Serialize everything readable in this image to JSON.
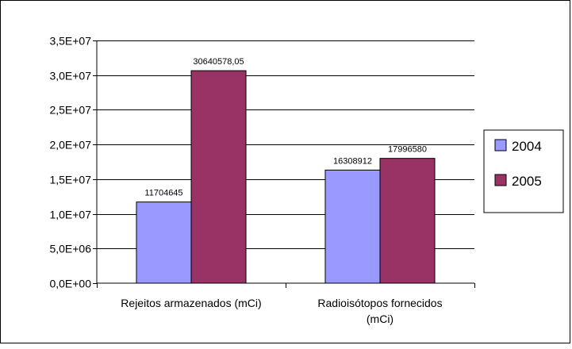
{
  "chart_data": {
    "type": "bar",
    "categories": [
      "Rejeitos armazenados (mCi)",
      "Radioisótopos fornecidos (mCi)"
    ],
    "category_lines": [
      [
        "Rejeitos armazenados (mCi)"
      ],
      [
        "Radioisótopos fornecidos",
        "(mCi)"
      ]
    ],
    "series": [
      {
        "name": "2004",
        "values": [
          11704645,
          16308912
        ],
        "labels": [
          "11704645",
          "16308912"
        ],
        "color": "#9999ff"
      },
      {
        "name": "2005",
        "values": [
          30640578.05,
          17996580
        ],
        "labels": [
          "30640578,05",
          "17996580"
        ],
        "color": "#993366"
      }
    ],
    "title": "",
    "xlabel": "",
    "ylabel": "",
    "ylim": [
      0,
      35000000
    ],
    "yticks": [
      0,
      5000000,
      10000000,
      15000000,
      20000000,
      25000000,
      30000000,
      35000000
    ],
    "ytick_labels": [
      "0,0E+00",
      "5,0E+06",
      "1,0E+07",
      "1,5E+07",
      "2,0E+07",
      "2,5E+07",
      "3,0E+07",
      "3,5E+07"
    ],
    "grid": true,
    "legend": "right",
    "plot_background": "#ffffff",
    "grid_color": "#000000"
  }
}
